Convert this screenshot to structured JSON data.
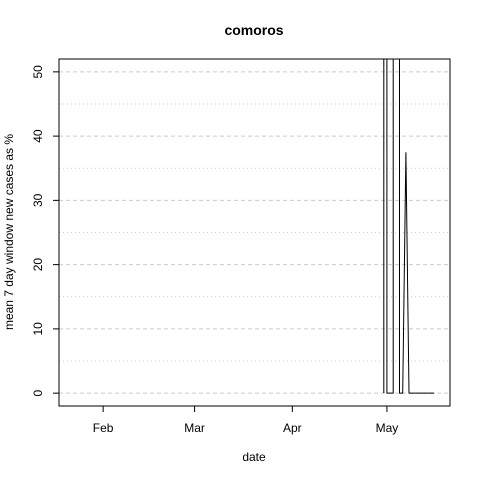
{
  "chart_data": {
    "type": "line",
    "title": "comoros",
    "xlabel": "date",
    "ylabel": "mean  7  day window new cases as %",
    "x_ticks": [
      {
        "label": "Feb",
        "date": "2020-02-01"
      },
      {
        "label": "Mar",
        "date": "2020-03-01"
      },
      {
        "label": "Apr",
        "date": "2020-04-01"
      },
      {
        "label": "May",
        "date": "2020-05-01"
      }
    ],
    "y_ticks": [
      0,
      10,
      20,
      30,
      40,
      50
    ],
    "xlim": [
      "2020-01-18",
      "2020-05-21"
    ],
    "ylim": [
      -2,
      52
    ],
    "grid": {
      "major": "dashed",
      "minor": "dotted",
      "minor_ticks": [
        5,
        15,
        25,
        35,
        45
      ]
    },
    "series": [
      {
        "x": [
          "2020-04-30",
          "2020-04-30",
          "2020-05-01",
          "2020-05-01",
          "2020-05-03",
          "2020-05-03",
          "2020-05-05",
          "2020-05-05",
          "2020-05-06",
          "2020-05-07",
          "2020-05-08",
          "2020-05-09",
          "2020-05-10",
          "2020-05-11",
          "2020-05-12",
          "2020-05-13",
          "2020-05-14",
          "2020-05-15",
          "2020-05-16"
        ],
        "y": [
          0,
          52,
          52,
          0,
          0,
          52,
          52,
          0,
          0,
          37.5,
          0,
          0,
          0,
          0,
          0,
          0,
          0,
          0,
          0
        ]
      }
    ],
    "line_color": "#000000"
  }
}
